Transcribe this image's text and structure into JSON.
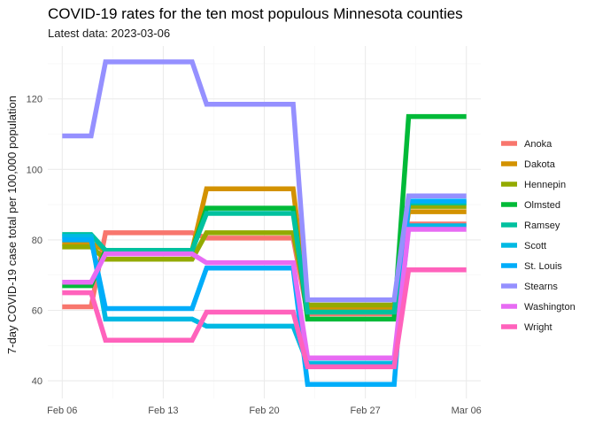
{
  "chart_data": {
    "type": "line",
    "title": "COVID-19 rates for the ten most populous Minnesota counties",
    "subtitle": "Latest data: 2023-03-06",
    "xlabel": "",
    "ylabel": "7-day COVID-19 case total per 100,000 population",
    "x": [
      "2023-02-06",
      "2023-02-08",
      "2023-02-09",
      "2023-02-15",
      "2023-02-16",
      "2023-02-22",
      "2023-02-23",
      "2023-03-01",
      "2023-03-02",
      "2023-03-06"
    ],
    "x_ticks": [
      {
        "date": "2023-02-06",
        "label": "Feb 06"
      },
      {
        "date": "2023-02-13",
        "label": "Feb 13"
      },
      {
        "date": "2023-02-20",
        "label": "Feb 20"
      },
      {
        "date": "2023-02-27",
        "label": "Feb 27"
      },
      {
        "date": "2023-03-06",
        "label": "Mar 06"
      }
    ],
    "xlim": [
      "2023-02-05",
      "2023-03-07"
    ],
    "y_ticks": [
      40,
      60,
      80,
      100,
      120
    ],
    "ylim": [
      35,
      135
    ],
    "grid": true,
    "legend_position": "right",
    "series": [
      {
        "name": "Anoka",
        "color": "#F8766D",
        "values": [
          61,
          61,
          82,
          82,
          80.5,
          80.5,
          59,
          59,
          84.5,
          84.5
        ]
      },
      {
        "name": "Dakota",
        "color": "#D39200",
        "values": [
          79,
          79,
          77,
          77,
          94.5,
          94.5,
          60.5,
          60.5,
          88,
          88
        ]
      },
      {
        "name": "Hennepin",
        "color": "#93AA00",
        "values": [
          78,
          78,
          74.5,
          74.5,
          82,
          82,
          61.5,
          61.5,
          89.5,
          89.5
        ]
      },
      {
        "name": "Olmsted",
        "color": "#00BA38",
        "values": [
          67,
          67,
          77,
          77,
          89,
          89,
          57.5,
          57.5,
          115,
          115
        ]
      },
      {
        "name": "Ramsey",
        "color": "#00C19F",
        "values": [
          81.5,
          81.5,
          77,
          77,
          87.5,
          87.5,
          59.5,
          59.5,
          90.5,
          90.5
        ]
      },
      {
        "name": "Scott",
        "color": "#00B9E3",
        "values": [
          81,
          81,
          57.5,
          57.5,
          55.5,
          55.5,
          45,
          45,
          84,
          84
        ]
      },
      {
        "name": "St. Louis",
        "color": "#00ADFA",
        "values": [
          80,
          80,
          60.5,
          60.5,
          72,
          72,
          39,
          39,
          91,
          91
        ]
      },
      {
        "name": "Stearns",
        "color": "#9590FF",
        "values": [
          109.5,
          109.5,
          130.5,
          130.5,
          118.5,
          118.5,
          63,
          63,
          92.5,
          92.5
        ]
      },
      {
        "name": "Washington",
        "color": "#E76BF3",
        "values": [
          68,
          68,
          76,
          76,
          73.5,
          73.5,
          46.5,
          46.5,
          83,
          83
        ]
      },
      {
        "name": "Wright",
        "color": "#FF62BC",
        "values": [
          65,
          65,
          51.5,
          51.5,
          59.5,
          59.5,
          44,
          44,
          71.5,
          71.5
        ]
      }
    ]
  }
}
